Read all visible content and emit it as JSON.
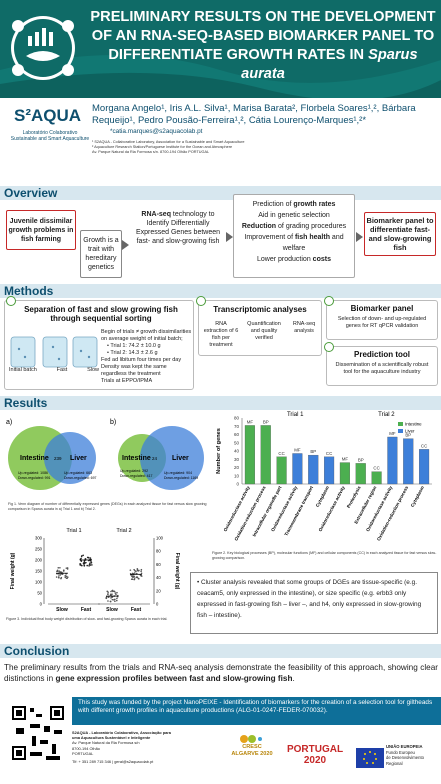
{
  "header": {
    "title_line1": "PRELIMINARY RESULTS ON THE DEVELOPMENT",
    "title_line2": "OF AN RNA-SEQ-BASED BIOMARKER PANEL TO",
    "title_line3": "DIFFERENTIATE GROWTH RATES IN",
    "title_species": "Sparus aurata",
    "brand": "S²AQUA",
    "brand_sub1": "Laboratório Colaborativo",
    "brand_sub2": "Sustainable and Smart Aquaculture",
    "authors": "Morgana Angelo¹, Iris A.L. Silva¹, Marisa Barata², Florbela Soares¹,², Bárbara Requeijo¹, Pedro Pousão-Ferreira¹,², Cátia Lourenço-Marques¹,²*",
    "email": "*catia.marques@s2aquacolab.pt",
    "affil1": "¹ S2AQUA - Collaborative Laboratory, Association for a Sustainable and Smart Aquaculture",
    "affil2": "² Aquaculture Research Station/Portuguese Institute for the Ocean and Atmosphere",
    "affil3": "Av. Parque Natural da Ria Formosa s/n. 8700-194 Olhão PORTUGAL"
  },
  "overview": {
    "heading": "Overview",
    "box1": "Juvenile dissimilar growth problems in fish farming",
    "box2": "Growth is a trait with hereditary genetics",
    "box3_bold": "RNA-seq",
    "box3_rest": " technology to Identify Differentially Expressed Genes between fast- and slow-growing fish",
    "box4_l1a": "Prediction of ",
    "box4_l1b": "growth rates",
    "box4_l2": "Aid in genetic selection",
    "box4_l3a": "Reduction",
    "box4_l3b": " of grading procedures",
    "box4_l4a": "Improvement of ",
    "box4_l4b": "fish health",
    "box4_l4c": " and welfare",
    "box4_l5a": "Lower production ",
    "box4_l5b": "costs",
    "box5": "Biomarker panel to differentiate fast- and slow-growing fish"
  },
  "methods": {
    "heading": "Methods",
    "sep_title": "Separation of fast and slow growing fish through sequential sorting",
    "sep_b1": "Begin of trials ≠ growth dissimilarities on average weight of initial batch;",
    "sep_t1": "• Trial 1: 74.2 ± 10.0 g",
    "sep_t2": "• Trial 2: 14.3 ± 2.6 g",
    "sep_b2": "Fed ad libitum four times per day",
    "sep_b3": "Density was kept the same regardless the treatment",
    "sep_b4": "Trials at EPPO/IPMA",
    "tank_labels": [
      "Initial batch",
      "Fast",
      "Slow"
    ],
    "tr_title": "Transcriptomic analyses",
    "tr_steps": [
      "RNA extraction of 6 fish per treatment",
      "Quantification and quality verified",
      "RNA-seq analysis"
    ],
    "bp_title": "Biomarker panel",
    "bp_text": "Selection of down- and up-regulated genes for RT qPCR validation",
    "pt_title": "Prediction tool",
    "pt_text": "Dissemination of a scientifically robust tool for the aquaculture industry"
  },
  "results": {
    "heading": "Results",
    "venn_a": {
      "label": "a)",
      "left": "Intestine",
      "right": "Liver",
      "mid": "239",
      "left_up": "Up-regulated: 1086",
      "left_down": "Down-regulated: 991",
      "right_up": "Up-regulated: 663",
      "right_down": "Down-regulated: 697"
    },
    "venn_b": {
      "label": "b)",
      "left": "Intestine",
      "right": "Liver",
      "mid": "24",
      "left_up": "Up-regulated: 292",
      "left_down": "Down-regulated: 417",
      "right_up": "Up-regulated: 904",
      "right_down": "Down-regulated: 1169"
    },
    "fig1_caption": "Fig 1. Venn diagram of number of differentially expressed genes (DEGs) in each analyzed tissue for fast versus slow growing comparison in Sparus aurata in a) Trial 1 and b) Trial 2.",
    "fig2_caption": "Figure 2. Key biological processes (BP), molecular functions (MF) and cellular components (CC) in each analyzed tissue for fast versus slow-growing comparison.",
    "fig3_caption": "Figure 3. Individual final body weight distribution of slow- and fast-growing Sparus aurata in each trial.",
    "cluster_text": "• Cluster analysis revealed that some groups of DGEs are tissue-specific (e.g. ceacam5, only expressed in the intestine), or size specific (e.g. erbb3 only expressed in fast-growing fish – liver –, and h4, only expressed in slow-growing fish – intestine)."
  },
  "chart_data": [
    {
      "type": "bar",
      "title": "",
      "ylabel": "Number of genes",
      "ylim": [
        0,
        80
      ],
      "y_ticks": [
        0,
        10,
        20,
        30,
        40,
        50,
        60,
        70,
        80
      ],
      "group_labels": [
        "Trial 1",
        "Trial 2"
      ],
      "legend": [
        {
          "name": "Intestine",
          "color": "#4caf50"
        },
        {
          "name": "Liver",
          "color": "#3d7fd9"
        }
      ],
      "bars": [
        {
          "category": "Oxidoreductase activity",
          "tag": "MF",
          "tissue": "Intestine",
          "value": 71
        },
        {
          "category": "Oxidation-reduction process",
          "tag": "BP",
          "tissue": "Intestine",
          "value": 71
        },
        {
          "category": "Intracellular organelle part",
          "tag": "CC",
          "tissue": "Intestine",
          "value": 33
        },
        {
          "category": "Oxidoreductase activity",
          "tag": "MF",
          "tissue": "Liver",
          "value": 37
        },
        {
          "category": "Transmembrane transport",
          "tag": "BP",
          "tissue": "Liver",
          "value": 35
        },
        {
          "category": "Cytoplasm",
          "tag": "CC",
          "tissue": "Liver",
          "value": 33
        },
        {
          "category": "Oxidoreductase activity",
          "tag": "MF",
          "tissue": "Intestine",
          "value": 26
        },
        {
          "category": "Proteolysis",
          "tag": "BP",
          "tissue": "Intestine",
          "value": 25
        },
        {
          "category": "Extracellular region",
          "tag": "CC",
          "tissue": "Intestine",
          "value": 15
        },
        {
          "category": "Oxidoreductase activity",
          "tag": "MF",
          "tissue": "Liver",
          "value": 57
        },
        {
          "category": "Oxidation-reduction process",
          "tag": "BP",
          "tissue": "Liver",
          "value": 55
        },
        {
          "category": "Cytoplasm",
          "tag": "CC",
          "tissue": "Liver",
          "value": 42
        }
      ]
    },
    {
      "type": "scatter",
      "title": "",
      "panels": [
        {
          "label": "Trial 1",
          "ylabel": "Final weight (g)",
          "ylim": [
            0,
            300
          ],
          "y_ticks": [
            0,
            50,
            100,
            150,
            200,
            250,
            300
          ],
          "categories": [
            "Slow",
            "Fast"
          ],
          "means": [
            140,
            200
          ]
        },
        {
          "label": "Trial 2",
          "ylabel": "Final weight (g)",
          "ylim": [
            0,
            100
          ],
          "y_ticks": [
            0,
            20,
            40,
            60,
            80,
            100
          ],
          "categories": [
            "Slow",
            "Fast"
          ],
          "means": [
            12,
            45
          ]
        }
      ]
    }
  ],
  "conclusion": {
    "heading": "Conclusion",
    "text1": "The preliminary results from the trials and RNA-seq analysis demonstrate the feasibility of this approach, showing clear distinctions in ",
    "text_bold": "gene expression profiles between fast and slow-growing fish",
    "text2": "."
  },
  "funding": {
    "text": "This study was funded by the project NanoPEIXE - Identification of biomarkers for the creation of a selection tool for giltheads with different growth profiles in aquaculture productions (ALG-01-0247-FEDER-070032)."
  },
  "footer": {
    "org1": "S2AQUA - Laboratório Colaborativo, Associação para",
    "org2": "uma Aquacultura Sustentável e Inteligente",
    "addr1": "Av. Parque Natural da Ria Formosa s/n",
    "addr2": "8700-194 Olhão",
    "addr3": "PORTUGAL",
    "contact": "Tlf: + 351 289 715 346 | geral@s2aquacolab.pt",
    "crescer": "CRESC ALGARVE 2020",
    "portugal": "PORTUGAL 2020",
    "ue1": "UNIÃO EUROPEIA",
    "ue2": "Fundo Europeu",
    "ue3": "de Desenvolvimento Regional"
  }
}
